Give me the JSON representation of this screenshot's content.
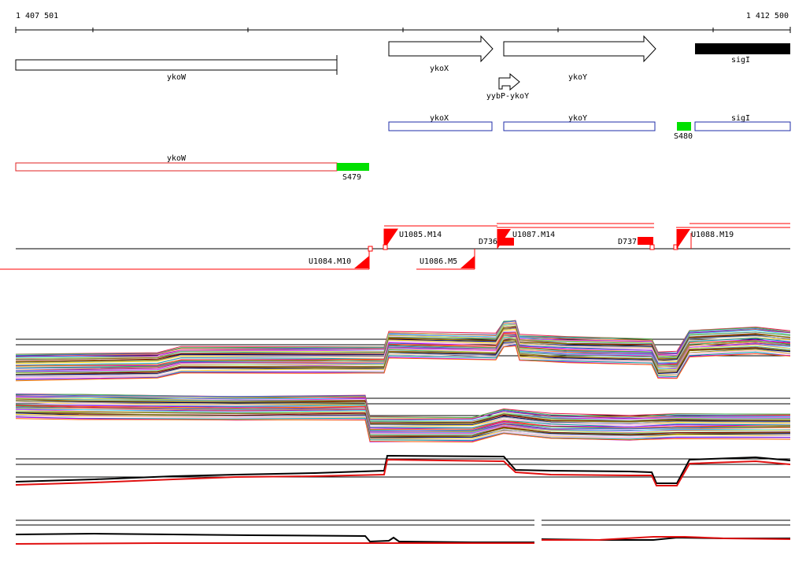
{
  "coordinates": {
    "start": "1 407 501",
    "end": "1 412 500"
  },
  "genes": {
    "ykoW": "ykoW",
    "ykoX": "ykoX",
    "ykoY": "ykoY",
    "sigI": "sigI",
    "promoter": "yybP-ykoY"
  },
  "transcripts": {
    "ykoX": "ykoX",
    "ykoY": "ykoY",
    "sigI": "sigI",
    "ykoW": "ykoW"
  },
  "segments": {
    "S479": "S479",
    "S480": "S480"
  },
  "probes": {
    "U1085": "U1085.M14",
    "U1087": "U1087.M14",
    "U1088": "U1088.M19",
    "U1084": "U1084.M10",
    "U1086": "U1086.M5",
    "D736": "D736",
    "D737": "D737"
  },
  "colors": {
    "gene_outline": "#000000",
    "gene_fill": "#ffffff",
    "sigI_fill": "#000000",
    "transcript_outline": "#1f2ea8",
    "ykoW_transcript": "#e02020",
    "segment_green": "#00e000",
    "probe_red": "#ff0000"
  }
}
